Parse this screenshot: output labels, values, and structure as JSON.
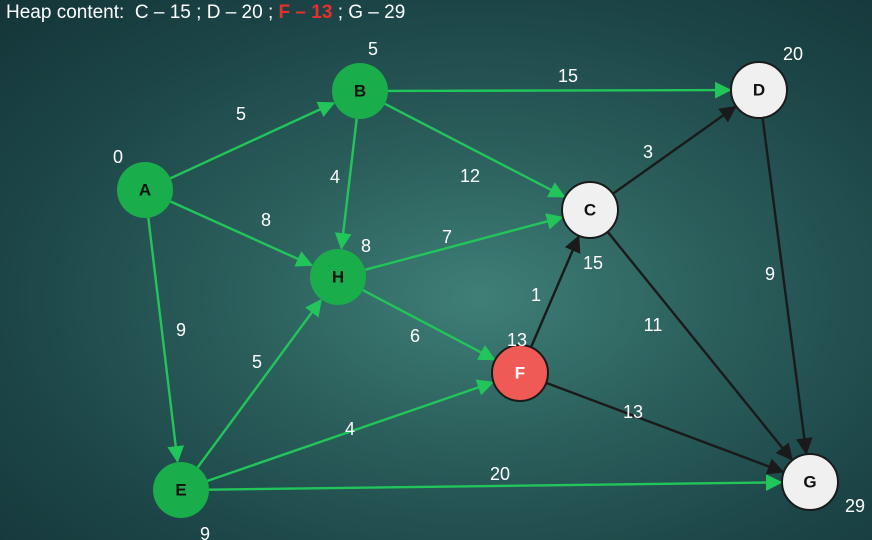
{
  "heap": {
    "label": "Heap content:",
    "items": [
      {
        "text": "C – 15",
        "highlight": false
      },
      {
        "text": "D – 20",
        "highlight": false
      },
      {
        "text": "F – 13",
        "highlight": true
      },
      {
        "text": "G – 29",
        "highlight": false
      }
    ],
    "separator": ";"
  },
  "colors": {
    "visited": "#1aad4b",
    "current": "#ef5a57",
    "unvisited": "#f0f0f0",
    "tree_edge": "#22c55a",
    "other_edge": "#1a1a1a",
    "highlight_text": "#e8302a"
  },
  "nodes": [
    {
      "id": "A",
      "label": "A",
      "distance": "0",
      "state": "visited"
    },
    {
      "id": "B",
      "label": "B",
      "distance": "5",
      "state": "visited"
    },
    {
      "id": "C",
      "label": "C",
      "distance": "15",
      "state": "unvisited"
    },
    {
      "id": "D",
      "label": "D",
      "distance": "20",
      "state": "unvisited"
    },
    {
      "id": "E",
      "label": "E",
      "distance": "9",
      "state": "visited"
    },
    {
      "id": "F",
      "label": "F",
      "distance": "13",
      "state": "current"
    },
    {
      "id": "G",
      "label": "G",
      "distance": "29",
      "state": "unvisited"
    },
    {
      "id": "H",
      "label": "H",
      "distance": "8",
      "state": "visited"
    }
  ],
  "edges": [
    {
      "from": "A",
      "to": "B",
      "weight": "5",
      "tree": true
    },
    {
      "from": "A",
      "to": "H",
      "weight": "8",
      "tree": true
    },
    {
      "from": "A",
      "to": "E",
      "weight": "9",
      "tree": true
    },
    {
      "from": "B",
      "to": "D",
      "weight": "15",
      "tree": true
    },
    {
      "from": "B",
      "to": "C",
      "weight": "12",
      "tree": true
    },
    {
      "from": "B",
      "to": "H",
      "weight": "4",
      "tree": true
    },
    {
      "from": "H",
      "to": "C",
      "weight": "7",
      "tree": true
    },
    {
      "from": "H",
      "to": "F",
      "weight": "6",
      "tree": true
    },
    {
      "from": "E",
      "to": "H",
      "weight": "5",
      "tree": true
    },
    {
      "from": "E",
      "to": "F",
      "weight": "4",
      "tree": true
    },
    {
      "from": "E",
      "to": "G",
      "weight": "20",
      "tree": true
    },
    {
      "from": "C",
      "to": "D",
      "weight": "3",
      "tree": false
    },
    {
      "from": "C",
      "to": "G",
      "weight": "11",
      "tree": false
    },
    {
      "from": "F",
      "to": "C",
      "weight": "1",
      "tree": false
    },
    {
      "from": "F",
      "to": "G",
      "weight": "13",
      "tree": false
    },
    {
      "from": "D",
      "to": "G",
      "weight": "9",
      "tree": false
    }
  ]
}
